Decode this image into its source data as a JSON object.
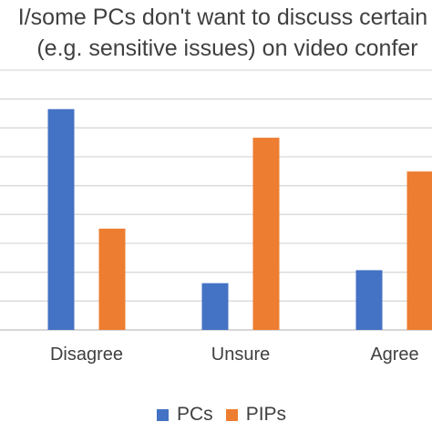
{
  "chart_data": {
    "type": "bar",
    "title_lines": [
      "I/some PCs don't want to discuss certain",
      "(e.g. sensitive issues) on video confer"
    ],
    "categories": [
      "Disagree",
      "Unsure",
      "Agree"
    ],
    "series": [
      {
        "name": "PCs",
        "color": "#4472C4",
        "values": [
          8.5,
          1.8,
          2.3
        ]
      },
      {
        "name": "PIPs",
        "color": "#ED7D31",
        "values": [
          3.9,
          7.4,
          6.1
        ]
      }
    ],
    "ylim": [
      0,
      10
    ],
    "gridlines": true,
    "legend_position": "bottom"
  }
}
